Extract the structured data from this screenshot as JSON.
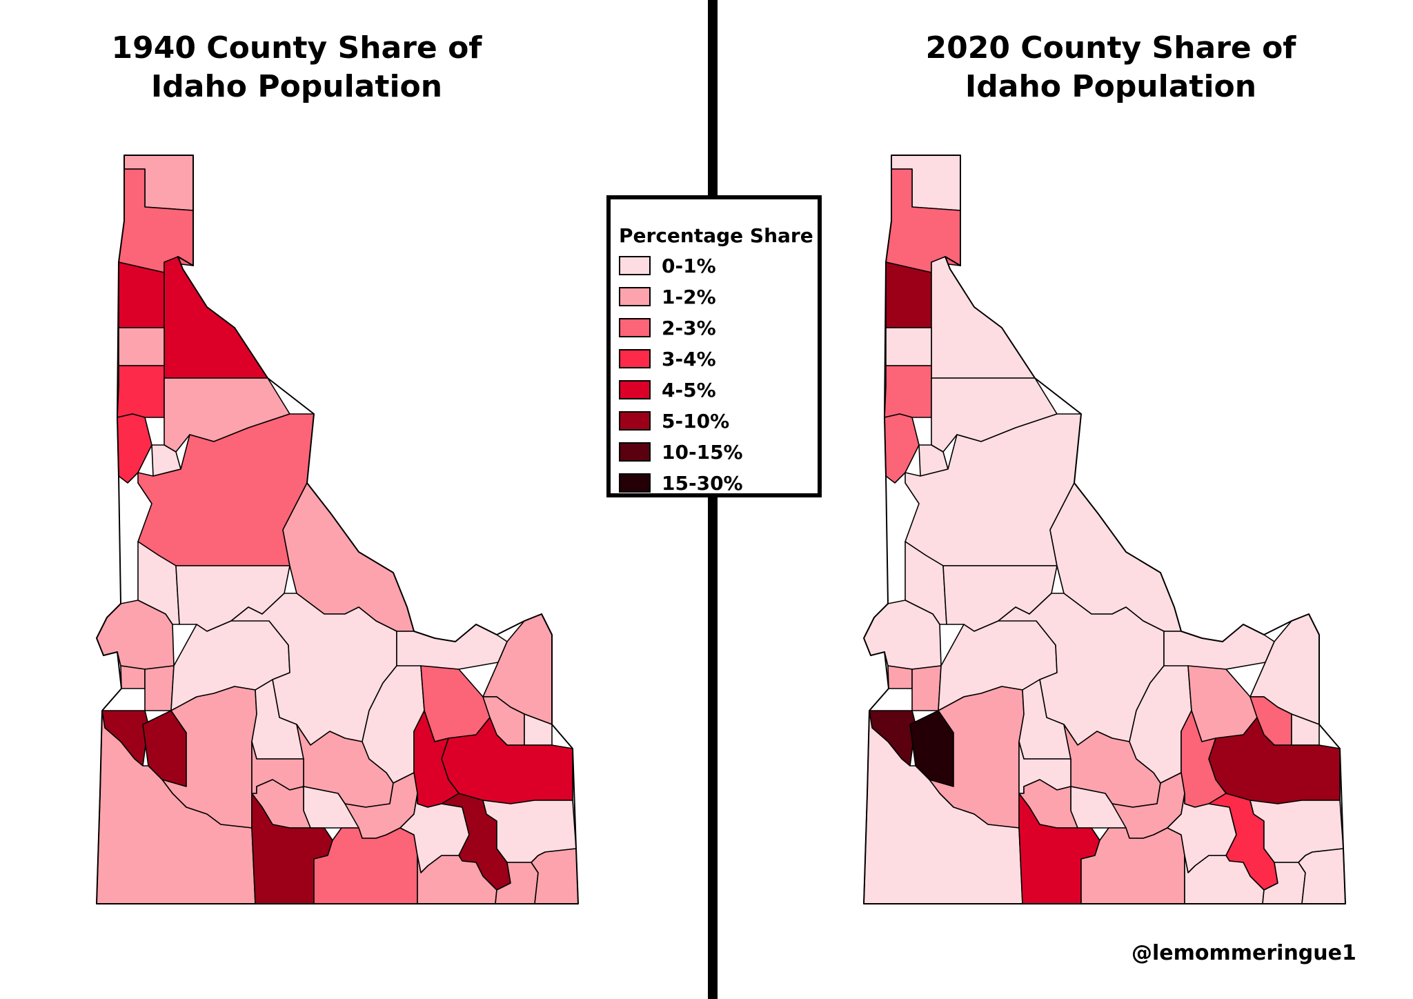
{
  "left_map": {
    "title_line1": "1940 County Share of",
    "title_line2": "Idaho Population"
  },
  "right_map": {
    "title_line1": "2020 County Share of",
    "title_line2": "Idaho Population"
  },
  "legend": {
    "title": "Percentage Share",
    "items": [
      {
        "label": "0-1%",
        "color": "#fddde2"
      },
      {
        "label": "1-2%",
        "color": "#fca3ad"
      },
      {
        "label": "2-3%",
        "color": "#fc6478"
      },
      {
        "label": "3-4%",
        "color": "#fd2a4a"
      },
      {
        "label": "4-5%",
        "color": "#dc0028"
      },
      {
        "label": "5-10%",
        "color": "#9c0018"
      },
      {
        "label": "10-15%",
        "color": "#5a000e"
      },
      {
        "label": "15-30%",
        "color": "#240006"
      }
    ]
  },
  "credit": "@lemommeringue1",
  "counties": [
    {
      "id": "boundary",
      "c1940": 1,
      "c2020": 0
    },
    {
      "id": "bonner",
      "c1940": 2,
      "c2020": 2
    },
    {
      "id": "kootenai",
      "c1940": 4,
      "c2020": 5
    },
    {
      "id": "shoshone",
      "c1940": 4,
      "c2020": 0
    },
    {
      "id": "benewah",
      "c1940": 1,
      "c2020": 0
    },
    {
      "id": "latah",
      "c1940": 3,
      "c2020": 2
    },
    {
      "id": "clearwater",
      "c1940": 1,
      "c2020": 0
    },
    {
      "id": "nez-perce",
      "c1940": 3,
      "c2020": 2
    },
    {
      "id": "lewis",
      "c1940": 0,
      "c2020": 0
    },
    {
      "id": "idaho",
      "c1940": 2,
      "c2020": 0
    },
    {
      "id": "adams",
      "c1940": 0,
      "c2020": 0
    },
    {
      "id": "valley",
      "c1940": 0,
      "c2020": 0
    },
    {
      "id": "lemhi",
      "c1940": 1,
      "c2020": 0
    },
    {
      "id": "washington",
      "c1940": 1,
      "c2020": 0
    },
    {
      "id": "payette",
      "c1940": 1,
      "c2020": 1
    },
    {
      "id": "gem",
      "c1940": 1,
      "c2020": 1
    },
    {
      "id": "boise",
      "c1940": 0,
      "c2020": 0
    },
    {
      "id": "custer",
      "c1940": 0,
      "c2020": 0
    },
    {
      "id": "clark",
      "c1940": 0,
      "c2020": 0
    },
    {
      "id": "fremont",
      "c1940": 1,
      "c2020": 0
    },
    {
      "id": "canyon",
      "c1940": 5,
      "c2020": 6
    },
    {
      "id": "ada",
      "c1940": 5,
      "c2020": 7
    },
    {
      "id": "elmore",
      "c1940": 1,
      "c2020": 1
    },
    {
      "id": "camas",
      "c1940": 0,
      "c2020": 0
    },
    {
      "id": "blaine",
      "c1940": 1,
      "c2020": 1
    },
    {
      "id": "butte",
      "c1940": 0,
      "c2020": 0
    },
    {
      "id": "jefferson",
      "c1940": 2,
      "c2020": 1
    },
    {
      "id": "madison",
      "c1940": 1,
      "c2020": 2
    },
    {
      "id": "teton",
      "c1940": 0,
      "c2020": 0
    },
    {
      "id": "bonneville",
      "c1940": 4,
      "c2020": 5
    },
    {
      "id": "bingham",
      "c1940": 4,
      "c2020": 2
    },
    {
      "id": "owyhee",
      "c1940": 1,
      "c2020": 0
    },
    {
      "id": "gooding",
      "c1940": 1,
      "c2020": 0
    },
    {
      "id": "lincoln",
      "c1940": 0,
      "c2020": 0
    },
    {
      "id": "jerome",
      "c1940": 1,
      "c2020": 1
    },
    {
      "id": "minidoka",
      "c1940": 1,
      "c2020": 1
    },
    {
      "id": "twin-falls",
      "c1940": 5,
      "c2020": 4
    },
    {
      "id": "cassia",
      "c1940": 2,
      "c2020": 1
    },
    {
      "id": "power",
      "c1940": 0,
      "c2020": 0
    },
    {
      "id": "bannock",
      "c1940": 5,
      "c2020": 3
    },
    {
      "id": "caribou",
      "c1940": 0,
      "c2020": 0
    },
    {
      "id": "oneida",
      "c1940": 1,
      "c2020": 0
    },
    {
      "id": "franklin",
      "c1940": 1,
      "c2020": 0
    },
    {
      "id": "bear-lake",
      "c1940": 1,
      "c2020": 0
    }
  ]
}
